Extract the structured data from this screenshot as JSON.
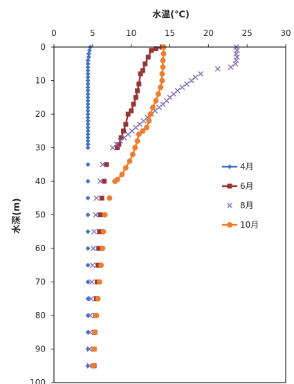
{
  "chart_data": {
    "type": "scatter",
    "title": "",
    "xlabel": "水温(℃)",
    "ylabel": "水深(m)",
    "xlim": [
      0,
      30
    ],
    "ylim": [
      0,
      100
    ],
    "y_inverted": true,
    "x_axis_position": "top",
    "x_ticks": [
      "0",
      "5",
      "10",
      "15",
      "20",
      "25",
      "30"
    ],
    "y_ticks": [
      "0",
      "10",
      "20",
      "30",
      "40",
      "50",
      "60",
      "70",
      "80",
      "90",
      "100"
    ],
    "grid": false,
    "legend_position": "right",
    "series": [
      {
        "name": "4月",
        "color": "#4472C4",
        "marker": "diamond",
        "line": true,
        "points": [
          [
            4.7,
            0
          ],
          [
            4.6,
            1
          ],
          [
            4.5,
            2
          ],
          [
            4.5,
            3
          ],
          [
            4.4,
            4
          ],
          [
            4.4,
            5
          ],
          [
            4.4,
            6
          ],
          [
            4.4,
            7
          ],
          [
            4.4,
            8
          ],
          [
            4.4,
            9
          ],
          [
            4.4,
            10
          ],
          [
            4.4,
            11
          ],
          [
            4.4,
            12
          ],
          [
            4.4,
            13
          ],
          [
            4.4,
            14
          ],
          [
            4.4,
            15
          ],
          [
            4.4,
            16
          ],
          [
            4.4,
            17
          ],
          [
            4.4,
            18
          ],
          [
            4.4,
            19
          ],
          [
            4.4,
            20
          ],
          [
            4.4,
            21
          ],
          [
            4.4,
            22
          ],
          [
            4.4,
            23
          ],
          [
            4.4,
            24
          ],
          [
            4.4,
            25
          ],
          [
            4.4,
            26
          ],
          [
            4.4,
            27
          ],
          [
            4.4,
            28
          ],
          [
            4.4,
            29
          ],
          [
            4.4,
            30
          ],
          [
            4.4,
            35
          ],
          [
            4.4,
            40
          ],
          [
            4.4,
            45
          ],
          [
            4.4,
            50
          ],
          [
            4.4,
            55
          ],
          [
            4.4,
            60
          ],
          [
            4.4,
            65
          ],
          [
            4.4,
            70
          ],
          [
            4.4,
            75
          ],
          [
            4.4,
            80
          ],
          [
            4.4,
            85
          ],
          [
            4.4,
            90
          ],
          [
            4.4,
            95
          ]
        ]
      },
      {
        "name": "6月",
        "color": "#943634",
        "marker": "square",
        "line": true,
        "points": [
          [
            14.0,
            0
          ],
          [
            13.2,
            0.5
          ],
          [
            12.6,
            1
          ],
          [
            12.2,
            3
          ],
          [
            11.8,
            5
          ],
          [
            11.5,
            7
          ],
          [
            11.2,
            8
          ],
          [
            11.0,
            11
          ],
          [
            10.8,
            13
          ],
          [
            10.6,
            15
          ],
          [
            10.3,
            17
          ],
          [
            10.0,
            19
          ],
          [
            9.6,
            20
          ],
          [
            9.3,
            23
          ],
          [
            9.0,
            25
          ],
          [
            8.7,
            27
          ],
          [
            8.4,
            29
          ],
          [
            8.2,
            30
          ],
          [
            6.8,
            35
          ],
          [
            6.5,
            40
          ],
          [
            6.2,
            45
          ],
          [
            6.0,
            50
          ],
          [
            5.9,
            55
          ],
          [
            5.8,
            60
          ],
          [
            5.7,
            65
          ],
          [
            5.6,
            70
          ],
          [
            5.5,
            75
          ],
          [
            5.4,
            80
          ],
          [
            5.3,
            85
          ],
          [
            5.2,
            90
          ],
          [
            5.2,
            95
          ]
        ]
      },
      {
        "name": "8月",
        "color": "#7F6BB0",
        "marker": "x",
        "line": false,
        "points": [
          [
            23.6,
            0
          ],
          [
            23.7,
            1
          ],
          [
            23.6,
            2
          ],
          [
            23.7,
            3
          ],
          [
            23.6,
            4
          ],
          [
            23.5,
            5
          ],
          [
            22.9,
            6
          ],
          [
            21.2,
            6.5
          ],
          [
            19.0,
            8
          ],
          [
            18.3,
            9
          ],
          [
            17.8,
            10
          ],
          [
            17.2,
            11
          ],
          [
            16.6,
            12
          ],
          [
            16.0,
            13
          ],
          [
            15.5,
            14
          ],
          [
            15.0,
            15
          ],
          [
            14.6,
            16
          ],
          [
            14.1,
            17
          ],
          [
            13.6,
            18
          ],
          [
            13.1,
            19
          ],
          [
            12.6,
            20
          ],
          [
            12.1,
            21
          ],
          [
            11.6,
            22
          ],
          [
            11.1,
            23
          ],
          [
            10.6,
            24
          ],
          [
            10.1,
            25
          ],
          [
            9.6,
            26
          ],
          [
            9.1,
            27
          ],
          [
            8.6,
            28
          ],
          [
            8.1,
            29
          ],
          [
            7.6,
            30
          ],
          [
            6.3,
            35
          ],
          [
            6.0,
            40
          ],
          [
            5.5,
            45
          ],
          [
            5.4,
            50
          ],
          [
            5.2,
            55
          ],
          [
            5.1,
            60
          ],
          [
            5.0,
            65
          ],
          [
            4.9,
            70
          ],
          [
            4.8,
            75
          ],
          [
            4.7,
            80
          ],
          [
            4.7,
            85
          ],
          [
            4.6,
            90
          ],
          [
            4.6,
            95
          ]
        ]
      },
      {
        "name": "10月",
        "color": "#ED7D31",
        "marker": "circle",
        "line": true,
        "points": [
          [
            14.2,
            0
          ],
          [
            14.2,
            2
          ],
          [
            14.1,
            4
          ],
          [
            14.1,
            6
          ],
          [
            14.0,
            8
          ],
          [
            14.0,
            10
          ],
          [
            13.8,
            12
          ],
          [
            13.5,
            14
          ],
          [
            13.2,
            16
          ],
          [
            12.8,
            18
          ],
          [
            12.5,
            20
          ],
          [
            12.3,
            22
          ],
          [
            12.0,
            24
          ],
          [
            11.5,
            25
          ],
          [
            11.0,
            26
          ],
          [
            10.8,
            28
          ],
          [
            10.5,
            30
          ],
          [
            10.2,
            32
          ],
          [
            9.8,
            34
          ],
          [
            9.3,
            36
          ],
          [
            8.8,
            38
          ],
          [
            8.2,
            39.5
          ],
          [
            7.9,
            40
          ],
          [
            7.2,
            45
          ],
          [
            6.6,
            50
          ],
          [
            6.4,
            55
          ],
          [
            6.3,
            60
          ],
          [
            6.1,
            65
          ],
          [
            5.9,
            70
          ],
          [
            5.7,
            75
          ],
          [
            5.5,
            80
          ],
          [
            5.3,
            85
          ],
          [
            5.2,
            90
          ],
          [
            5.1,
            95
          ]
        ]
      }
    ]
  }
}
